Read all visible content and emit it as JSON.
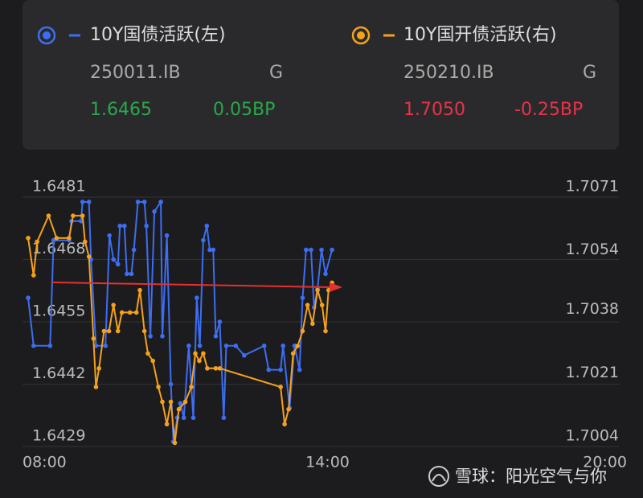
{
  "chart_data": {
    "type": "line",
    "xlim": [
      8,
      20
    ],
    "xticks": [
      {
        "value": 8,
        "label": "08:00"
      },
      {
        "value": 14,
        "label": "14:00"
      },
      {
        "value": 20,
        "label": "20:00"
      }
    ],
    "ylim": [
      1.6429,
      1.6481
    ],
    "yticks": [
      1.6481,
      1.6468,
      1.6455,
      1.6442,
      1.6429
    ],
    "y2lim": [
      1.7004,
      1.7071
    ],
    "y2ticks": [
      1.7071,
      1.7054,
      1.7038,
      1.7021,
      1.7004
    ],
    "grid": true,
    "series": [
      {
        "name": "10Y国债活跃(左)",
        "color": "#3d6ef2",
        "axis": "y",
        "code": "250011.IB",
        "grade": "G",
        "price": "1.6465",
        "change": "0.05BP",
        "quote_color": "#2aa84a",
        "x": [
          8.0,
          8.11,
          8.44,
          8.51,
          8.82,
          8.87,
          9.06,
          9.09,
          9.22,
          9.26,
          9.36,
          9.55,
          9.63,
          9.71,
          9.8,
          9.84,
          9.93,
          9.98,
          10.07,
          10.12,
          10.2,
          10.33,
          10.37,
          10.45,
          10.53,
          10.66,
          10.69,
          10.78,
          10.86,
          10.91,
          10.99,
          11.05,
          11.12,
          11.22,
          11.31,
          11.38,
          11.44,
          11.51,
          11.58,
          11.64,
          11.71,
          11.76,
          11.84,
          11.92,
          11.97,
          12.16,
          12.33,
          12.73,
          12.82,
          13.06,
          13.11,
          13.24,
          13.34,
          13.44,
          13.5,
          13.57,
          13.67,
          13.73,
          13.8,
          13.88,
          13.96,
          14.09
        ],
        "values": [
          1.646,
          1.645,
          1.645,
          1.6472,
          1.6472,
          1.6476,
          1.6476,
          1.648,
          1.648,
          1.6468,
          1.645,
          1.645,
          1.6473,
          1.6468,
          1.6467,
          1.6475,
          1.6475,
          1.6465,
          1.6465,
          1.647,
          1.648,
          1.648,
          1.6475,
          1.6452,
          1.6478,
          1.648,
          1.6452,
          1.6473,
          1.6442,
          1.643,
          1.6435,
          1.6438,
          1.6435,
          1.645,
          1.6435,
          1.646,
          1.645,
          1.6472,
          1.6475,
          1.647,
          1.647,
          1.6452,
          1.6455,
          1.6435,
          1.645,
          1.645,
          1.6448,
          1.645,
          1.6445,
          1.6445,
          1.645,
          1.6437,
          1.645,
          1.6445,
          1.646,
          1.647,
          1.647,
          1.6458,
          1.6462,
          1.647,
          1.6465,
          1.647
        ]
      },
      {
        "name": "10Y国开债活跃(右)",
        "color": "#f5a11c",
        "axis": "y2",
        "code": "250210.IB",
        "grade": "G",
        "price": "1.7050",
        "change": "-0.25BP",
        "quote_color": "#e8334a",
        "x": [
          8.0,
          8.11,
          8.18,
          8.41,
          8.57,
          8.82,
          8.9,
          9.09,
          9.14,
          9.22,
          9.31,
          9.36,
          9.42,
          9.52,
          9.62,
          9.71,
          9.8,
          9.88,
          10.04,
          10.17,
          10.24,
          10.33,
          10.4,
          10.5,
          10.61,
          10.69,
          10.78,
          10.86,
          10.94,
          11.02,
          11.15,
          11.27,
          11.35,
          11.43,
          11.51,
          11.59,
          11.76,
          11.84,
          13.06,
          13.14,
          13.22,
          13.31,
          13.4,
          13.5,
          13.6,
          13.7,
          13.8,
          13.89,
          13.96,
          14.02,
          14.09
        ],
        "values": [
          1.706,
          1.705,
          1.7059,
          1.7066,
          1.706,
          1.706,
          1.7066,
          1.7066,
          1.7059,
          1.7055,
          1.7033,
          1.702,
          1.7025,
          1.7035,
          1.7035,
          1.7042,
          1.7035,
          1.704,
          1.704,
          1.704,
          1.7046,
          1.7035,
          1.7029,
          1.7027,
          1.702,
          1.7016,
          1.701,
          1.7016,
          1.7005,
          1.7014,
          1.7016,
          1.702,
          1.7029,
          1.7027,
          1.7029,
          1.7025,
          1.7025,
          1.7025,
          1.702,
          1.701,
          1.7014,
          1.7029,
          1.7031,
          1.7035,
          1.7042,
          1.7037,
          1.7046,
          1.7042,
          1.7035,
          1.7046,
          1.7048
        ]
      }
    ]
  },
  "watermark": "雪球：阳光空气与你"
}
